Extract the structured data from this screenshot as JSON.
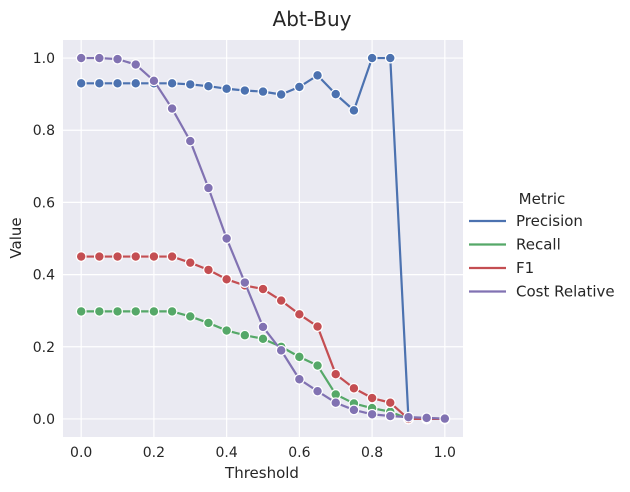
{
  "chart_data": {
    "type": "line",
    "title": "Abt-Buy",
    "xlabel": "Threshold",
    "ylabel": "Value",
    "xlim": [
      -0.05,
      1.05
    ],
    "ylim": [
      -0.05,
      1.05
    ],
    "xticks": [
      0.0,
      0.2,
      0.4,
      0.6,
      0.8,
      1.0
    ],
    "xtick_labels": [
      "0.0",
      "0.2",
      "0.4",
      "0.6",
      "0.8",
      "1.0"
    ],
    "yticks": [
      0.0,
      0.2,
      0.4,
      0.6,
      0.8,
      1.0
    ],
    "ytick_labels": [
      "0.0",
      "0.2",
      "0.4",
      "0.6",
      "0.8",
      "1.0"
    ],
    "grid": true,
    "legend": {
      "title": "Metric",
      "placement": "outside-right"
    },
    "x": [
      0.0,
      0.05,
      0.1,
      0.15,
      0.2,
      0.25,
      0.3,
      0.35,
      0.4,
      0.45,
      0.5,
      0.55,
      0.6,
      0.65,
      0.7,
      0.75,
      0.8,
      0.85,
      0.9,
      0.95,
      1.0
    ],
    "series": [
      {
        "name": "Precision",
        "color": "#4c72b0",
        "values": [
          0.93,
          0.93,
          0.93,
          0.93,
          0.93,
          0.93,
          0.927,
          0.922,
          0.915,
          0.91,
          0.907,
          0.899,
          0.92,
          0.952,
          0.9,
          0.855,
          1.0,
          1.0,
          0.0,
          0.0,
          0.0
        ]
      },
      {
        "name": "Recall",
        "color": "#55a868",
        "values": [
          0.298,
          0.298,
          0.298,
          0.298,
          0.298,
          0.298,
          0.284,
          0.266,
          0.245,
          0.232,
          0.222,
          0.2,
          0.172,
          0.148,
          0.068,
          0.043,
          0.03,
          0.02,
          0.0,
          0.0,
          0.0
        ]
      },
      {
        "name": "F1",
        "color": "#c44e52",
        "values": [
          0.45,
          0.45,
          0.45,
          0.45,
          0.45,
          0.45,
          0.433,
          0.413,
          0.387,
          0.37,
          0.36,
          0.328,
          0.29,
          0.256,
          0.124,
          0.085,
          0.058,
          0.045,
          0.0,
          0.0,
          0.0
        ]
      },
      {
        "name": "Cost Relative",
        "color": "#8172b2",
        "values": [
          1.0,
          1.0,
          0.997,
          0.982,
          0.937,
          0.86,
          0.77,
          0.64,
          0.5,
          0.378,
          0.255,
          0.19,
          0.11,
          0.077,
          0.045,
          0.025,
          0.013,
          0.008,
          0.005,
          0.003,
          0.001
        ]
      }
    ]
  }
}
